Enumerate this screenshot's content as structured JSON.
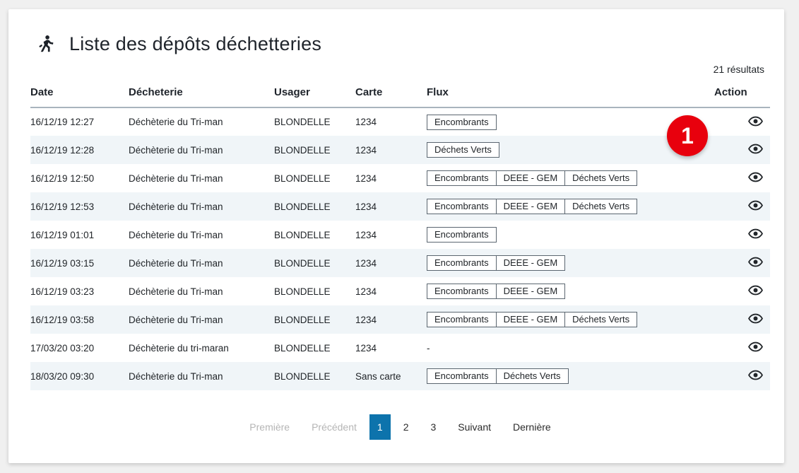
{
  "header": {
    "title": "Liste des dépôts déchetteries",
    "icon": "person-running-icon",
    "results_count": "21 résultats"
  },
  "table": {
    "columns": {
      "date": "Date",
      "dechetterie": "Décheterie",
      "usager": "Usager",
      "carte": "Carte",
      "flux": "Flux",
      "action": "Action"
    },
    "rows": [
      {
        "date": "16/12/19 12:27",
        "dechetterie": "Déchèterie du Tri-man",
        "usager": "BLONDELLE",
        "carte": "1234",
        "flux": [
          "Encombrants"
        ],
        "flux_text": ""
      },
      {
        "date": "16/12/19 12:28",
        "dechetterie": "Déchèterie du Tri-man",
        "usager": "BLONDELLE",
        "carte": "1234",
        "flux": [
          "Déchets Verts"
        ],
        "flux_text": ""
      },
      {
        "date": "16/12/19 12:50",
        "dechetterie": "Déchèterie du Tri-man",
        "usager": "BLONDELLE",
        "carte": "1234",
        "flux": [
          "Encombrants",
          "DEEE - GEM",
          "Déchets Verts"
        ],
        "flux_text": ""
      },
      {
        "date": "16/12/19 12:53",
        "dechetterie": "Déchèterie du Tri-man",
        "usager": "BLONDELLE",
        "carte": "1234",
        "flux": [
          "Encombrants",
          "DEEE - GEM",
          "Déchets Verts"
        ],
        "flux_text": ""
      },
      {
        "date": "16/12/19 01:01",
        "dechetterie": "Déchèterie du Tri-man",
        "usager": "BLONDELLE",
        "carte": "1234",
        "flux": [
          "Encombrants"
        ],
        "flux_text": ""
      },
      {
        "date": "16/12/19 03:15",
        "dechetterie": "Déchèterie du Tri-man",
        "usager": "BLONDELLE",
        "carte": "1234",
        "flux": [
          "Encombrants",
          "DEEE - GEM"
        ],
        "flux_text": ""
      },
      {
        "date": "16/12/19 03:23",
        "dechetterie": "Déchèterie du Tri-man",
        "usager": "BLONDELLE",
        "carte": "1234",
        "flux": [
          "Encombrants",
          "DEEE - GEM"
        ],
        "flux_text": ""
      },
      {
        "date": "16/12/19 03:58",
        "dechetterie": "Déchèterie du Tri-man",
        "usager": "BLONDELLE",
        "carte": "1234",
        "flux": [
          "Encombrants",
          "DEEE - GEM",
          "Déchets Verts"
        ],
        "flux_text": ""
      },
      {
        "date": "17/03/20 03:20",
        "dechetterie": "Déchèterie du tri-maran",
        "usager": "BLONDELLE",
        "carte": "1234",
        "flux": [],
        "flux_text": "-"
      },
      {
        "date": "18/03/20 09:30",
        "dechetterie": "Déchèterie du Tri-man",
        "usager": "BLONDELLE",
        "carte": "Sans carte",
        "flux": [
          "Encombrants",
          "Déchets Verts"
        ],
        "flux_text": ""
      }
    ],
    "action_icon": "eye-icon"
  },
  "pagination": {
    "items": [
      {
        "label": "Première",
        "state": "disabled"
      },
      {
        "label": "Précédent",
        "state": "disabled"
      },
      {
        "label": "1",
        "state": "active"
      },
      {
        "label": "2",
        "state": "normal"
      },
      {
        "label": "3",
        "state": "normal"
      },
      {
        "label": "Suivant",
        "state": "normal"
      },
      {
        "label": "Dernière",
        "state": "normal"
      }
    ]
  },
  "annotation": {
    "label": "1",
    "color": "#e8000d"
  },
  "colors": {
    "accent_blue": "#0d73ac",
    "row_stripe": "#f0f5f8",
    "badge_border": "#5b6670",
    "annotation_red": "#e8000d"
  }
}
